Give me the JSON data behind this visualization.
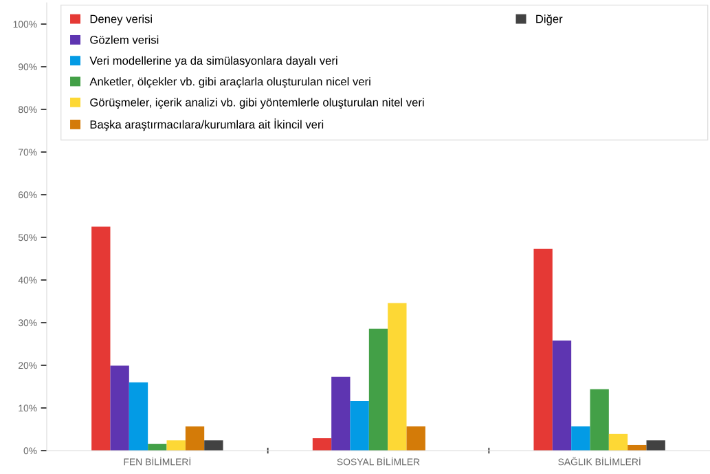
{
  "chart_data": {
    "type": "bar",
    "categories": [
      "FEN BİLİMLERİ",
      "SOSYAL BİLİMLER",
      "SAĞLIK BİLİMLERİ"
    ],
    "series": [
      {
        "name": "Deney verisi",
        "color": "#e53935",
        "values": [
          52.5,
          2.9,
          47.3
        ]
      },
      {
        "name": "Gözlem verisi",
        "color": "#5e35b1",
        "values": [
          19.9,
          17.3,
          25.8
        ]
      },
      {
        "name": "Veri modellerine ya da simülasyonlara dayalı veri",
        "color": "#039be5",
        "values": [
          16.0,
          11.6,
          5.7
        ]
      },
      {
        "name": "Anketler, ölçekler vb. gibi araçlarla oluşturulan nicel veri",
        "color": "#43a047",
        "values": [
          1.6,
          28.6,
          14.4
        ]
      },
      {
        "name": "Görüşmeler, içerik analizi vb. gibi yöntemlerle oluşturulan nitel veri",
        "color": "#fdd835",
        "values": [
          2.4,
          34.6,
          3.9
        ]
      },
      {
        "name": "Başka araştırmacılara/kurumlara ait İkincil veri",
        "color": "#d47b08",
        "values": [
          5.7,
          5.7,
          1.3
        ]
      },
      {
        "name": "Diğer",
        "color": "#424242",
        "values": [
          2.4,
          0,
          2.4
        ]
      }
    ],
    "ylim": [
      0,
      105
    ],
    "yticks": [
      {
        "value": 0,
        "label": "0%"
      },
      {
        "value": 10,
        "label": "10%"
      },
      {
        "value": 20,
        "label": "20%"
      },
      {
        "value": 30,
        "label": "30%"
      },
      {
        "value": 40,
        "label": "40%"
      },
      {
        "value": 50,
        "label": "50%"
      },
      {
        "value": 60,
        "label": "60%"
      },
      {
        "value": 70,
        "label": "70%"
      },
      {
        "value": 80,
        "label": "80%"
      },
      {
        "value": 90,
        "label": "90%"
      },
      {
        "value": 100,
        "label": "100%"
      }
    ],
    "grid": false,
    "legend": "top"
  }
}
